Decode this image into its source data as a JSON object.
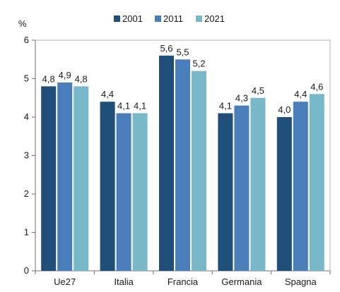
{
  "chart_data": {
    "type": "bar",
    "unit_label": "%",
    "categories": [
      "Ue27",
      "Italia",
      "Francia",
      "Germania",
      "Spagna"
    ],
    "series": [
      {
        "name": "2001",
        "color": "#1f4e79",
        "values": [
          4.8,
          4.4,
          5.6,
          4.1,
          4.0
        ],
        "labels": [
          "4,8",
          "4,4",
          "5,6",
          "4,1",
          "4,0"
        ]
      },
      {
        "name": "2011",
        "color": "#4a7ebb",
        "values": [
          4.9,
          4.1,
          5.5,
          4.3,
          4.4
        ],
        "labels": [
          "4,9",
          "4,1",
          "5,5",
          "4,3",
          "4,4"
        ]
      },
      {
        "name": "2021",
        "color": "#79b8c9",
        "values": [
          4.8,
          4.1,
          5.2,
          4.5,
          4.6
        ],
        "labels": [
          "4,8",
          "4,1",
          "5,2",
          "4,5",
          "4,6"
        ]
      }
    ],
    "ylim": [
      0,
      6
    ],
    "yticks": [
      0,
      1,
      2,
      3,
      4,
      5,
      6
    ],
    "grid": false,
    "legend_position": "top"
  }
}
